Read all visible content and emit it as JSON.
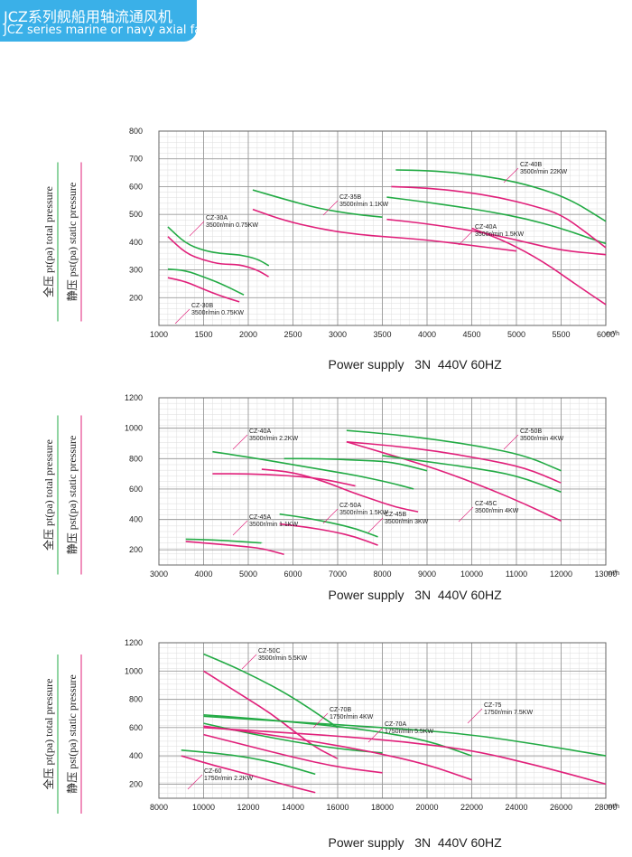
{
  "header": {
    "title_cn": "JCZ系列舰船用轴流通风机",
    "title_en": "JCZ series marine or navy axial fan",
    "band_color": "#3ab0e8"
  },
  "colors": {
    "total_pressure": "#22aa44",
    "static_pressure": "#e0207a",
    "grid": "#aaaaaa",
    "leader": "#e0207a"
  },
  "y_axis_label": {
    "total": "全压 pt(pa) total pressure",
    "static": "静压 pst(pa) static pressure"
  },
  "chart_data": [
    {
      "type": "line",
      "title": "",
      "xlabel": "Power supply   3N  440V 60HZ",
      "x_unit": "m³/h",
      "xlim": [
        1000,
        6000
      ],
      "ylim": [
        100,
        800
      ],
      "x_ticks": [
        "1000",
        "1500",
        "2000",
        "2500",
        "3000",
        "3500",
        "4000",
        "4500",
        "5000",
        "5500",
        "6000"
      ],
      "y_ticks": [
        "200",
        "300",
        "400",
        "500",
        "600",
        "700",
        "800"
      ],
      "grid": true,
      "series": [
        {
          "name": "CZ-30A",
          "kind": "total",
          "x": [
            1100,
            1300,
            1500,
            1700,
            1900,
            2100,
            2230
          ],
          "y": [
            455,
            395,
            370,
            358,
            355,
            340,
            315
          ]
        },
        {
          "name": "CZ-30A",
          "kind": "static",
          "x": [
            1100,
            1300,
            1500,
            1700,
            1900,
            2100,
            2230
          ],
          "y": [
            420,
            360,
            335,
            320,
            320,
            300,
            275
          ]
        },
        {
          "name": "CZ-30B",
          "kind": "total",
          "x": [
            1100,
            1300,
            1500,
            1700,
            1950
          ],
          "y": [
            303,
            298,
            275,
            250,
            210
          ]
        },
        {
          "name": "CZ-30B",
          "kind": "static",
          "x": [
            1100,
            1300,
            1500,
            1700,
            1900
          ],
          "y": [
            272,
            258,
            230,
            205,
            185
          ]
        },
        {
          "name": "CZ-35B",
          "kind": "total",
          "x": [
            2050,
            2400,
            2800,
            3200,
            3500
          ],
          "y": [
            588,
            555,
            520,
            500,
            490
          ]
        },
        {
          "name": "CZ-35B",
          "kind": "static",
          "x": [
            2050,
            2400,
            2800,
            3200,
            3600,
            4000,
            4500,
            5000
          ],
          "y": [
            518,
            478,
            448,
            428,
            418,
            408,
            388,
            368
          ]
        },
        {
          "name": "CZ-40A",
          "kind": "total",
          "x": [
            3550,
            3900,
            4300,
            4700,
            5100,
            5500,
            5900,
            6000
          ],
          "y": [
            562,
            548,
            530,
            510,
            485,
            450,
            405,
            395
          ]
        },
        {
          "name": "CZ-40A",
          "kind": "static",
          "x": [
            3550,
            3900,
            4300,
            4700,
            5100,
            5500,
            6000
          ],
          "y": [
            482,
            470,
            452,
            430,
            400,
            370,
            355
          ]
        },
        {
          "name": "CZ-40B",
          "kind": "total",
          "x": [
            3650,
            4000,
            4400,
            4800,
            5200,
            5600,
            6000
          ],
          "y": [
            660,
            658,
            648,
            630,
            600,
            555,
            475
          ]
        },
        {
          "name": "CZ-40B",
          "kind": "static",
          "x": [
            3600,
            4000,
            4400,
            4800,
            5200,
            5500,
            5800,
            6000
          ],
          "y": [
            600,
            595,
            582,
            562,
            530,
            500,
            430,
            380
          ]
        },
        {
          "name": "CZ-40B",
          "kind": "static",
          "x": [
            4500,
            4900,
            5300,
            5700,
            6000
          ],
          "y": [
            450,
            400,
            330,
            240,
            175
          ]
        }
      ],
      "labels": [
        {
          "name": "CZ-30A",
          "spec": "3500r/min  0.75KW"
        },
        {
          "name": "CZ-30B",
          "spec": "3500r/min  0.75KW"
        },
        {
          "name": "CZ-35B",
          "spec": "3500r/min  1.1KW"
        },
        {
          "name": "CZ-40A",
          "spec": "3500r/min  1.5KW"
        },
        {
          "name": "CZ-40B",
          "spec": "3500r/min  22KW"
        }
      ]
    },
    {
      "type": "line",
      "title": "",
      "xlabel": "Power supply   3N  440V 60HZ",
      "x_unit": "m³/h",
      "xlim": [
        3000,
        13000
      ],
      "ylim": [
        100,
        1200
      ],
      "x_ticks": [
        "3000",
        "4000",
        "5000",
        "6000",
        "7000",
        "8000",
        "9000",
        "10000",
        "11000",
        "12000",
        "13000"
      ],
      "y_ticks": [
        "200",
        "400",
        "600",
        "800",
        "1000",
        "1200"
      ],
      "grid": true,
      "series": [
        {
          "name": "CZ-45A",
          "kind": "total",
          "x": [
            3600,
            4200,
            4800,
            5300
          ],
          "y": [
            270,
            265,
            255,
            245
          ]
        },
        {
          "name": "CZ-45A",
          "kind": "static",
          "x": [
            3600,
            4200,
            4800,
            5300,
            5800
          ],
          "y": [
            255,
            240,
            225,
            210,
            170
          ]
        },
        {
          "name": "CZ-40A",
          "kind": "total",
          "x": [
            4200,
            5000,
            5800,
            6600,
            7400,
            8200,
            8700
          ],
          "y": [
            845,
            810,
            770,
            730,
            690,
            640,
            600
          ]
        },
        {
          "name": "CZ-40A",
          "kind": "static",
          "x": [
            4200,
            5000,
            5800,
            6600,
            7400
          ],
          "y": [
            700,
            700,
            690,
            670,
            620
          ]
        },
        {
          "name": "CZ-50A",
          "kind": "total",
          "x": [
            5700,
            6300,
            6900,
            7400,
            7900
          ],
          "y": [
            435,
            410,
            375,
            340,
            285
          ]
        },
        {
          "name": "CZ-50A",
          "kind": "static",
          "x": [
            5700,
            6300,
            6900,
            7400,
            7900
          ],
          "y": [
            370,
            350,
            320,
            285,
            230
          ]
        },
        {
          "name": "CZ-45B",
          "kind": "total",
          "x": [
            5800,
            6600,
            7400,
            8200,
            9000
          ],
          "y": [
            800,
            800,
            790,
            780,
            720
          ]
        },
        {
          "name": "CZ-45B",
          "kind": "static",
          "x": [
            5300,
            6000,
            6700,
            7300,
            7800,
            8300,
            8800
          ],
          "y": [
            730,
            710,
            650,
            580,
            530,
            480,
            450
          ]
        },
        {
          "name": "CZ-50B",
          "kind": "total",
          "x": [
            7200,
            8200,
            9200,
            10200,
            11200,
            12000
          ],
          "y": [
            985,
            960,
            925,
            880,
            820,
            720
          ]
        },
        {
          "name": "CZ-50B",
          "kind": "static",
          "x": [
            7200,
            8200,
            9200,
            10200,
            11200,
            12000
          ],
          "y": [
            910,
            885,
            850,
            800,
            740,
            640
          ]
        },
        {
          "name": "CZ-45C",
          "kind": "static",
          "x": [
            7200,
            8000,
            8800,
            9600,
            10400,
            11200,
            12000
          ],
          "y": [
            910,
            840,
            770,
            690,
            600,
            500,
            390
          ]
        },
        {
          "name": "CZ-45C",
          "kind": "total",
          "x": [
            8000,
            9000,
            10000,
            11000,
            12000
          ],
          "y": [
            820,
            780,
            740,
            690,
            580
          ]
        }
      ],
      "labels": [
        {
          "name": "CZ-40A",
          "spec": "3500r/min  2.2KW"
        },
        {
          "name": "CZ-45A",
          "spec": "3500r/min  1.1KW"
        },
        {
          "name": "CZ-50A",
          "spec": "3500r/min  1.5KW"
        },
        {
          "name": "CZ-45B",
          "spec": "3500r/min  3KW"
        },
        {
          "name": "CZ-50B",
          "spec": "3500r/min  4KW"
        },
        {
          "name": "CZ-45C",
          "spec": "3500r/min  4KW"
        }
      ]
    },
    {
      "type": "line",
      "title": "",
      "xlabel": "Power supply   3N  440V 60HZ",
      "x_unit": "m³/h",
      "xlim": [
        8000,
        28000
      ],
      "ylim": [
        100,
        1200
      ],
      "x_ticks": [
        "8000",
        "10000",
        "12000",
        "14000",
        "16000",
        "18000",
        "20000",
        "22000",
        "24000",
        "26000",
        "28000"
      ],
      "y_ticks": [
        "200",
        "400",
        "600",
        "800",
        "1000",
        "1200"
      ],
      "grid": true,
      "series": [
        {
          "name": "CZ-50C",
          "kind": "total",
          "x": [
            10000,
            11200,
            12400,
            13600,
            14800,
            16000
          ],
          "y": [
            1120,
            1040,
            950,
            850,
            730,
            600
          ]
        },
        {
          "name": "CZ-50C",
          "kind": "static",
          "x": [
            10000,
            11000,
            12000,
            13000,
            14000,
            15000,
            16000
          ],
          "y": [
            1000,
            900,
            800,
            700,
            580,
            460,
            380
          ]
        },
        {
          "name": "CZ-60",
          "kind": "total",
          "x": [
            9000,
            10500,
            12000,
            13500,
            15000
          ],
          "y": [
            440,
            420,
            390,
            340,
            270
          ]
        },
        {
          "name": "CZ-60",
          "kind": "static",
          "x": [
            9000,
            10500,
            12000,
            13500,
            15000
          ],
          "y": [
            400,
            330,
            270,
            200,
            140
          ]
        },
        {
          "name": "CZ-70B",
          "kind": "total",
          "x": [
            10000,
            12000,
            14000,
            16000,
            18000
          ],
          "y": [
            630,
            560,
            500,
            450,
            420
          ]
        },
        {
          "name": "CZ-70B",
          "kind": "static",
          "x": [
            10000,
            12000,
            14000,
            16000,
            18000
          ],
          "y": [
            550,
            470,
            390,
            320,
            280
          ]
        },
        {
          "name": "CZ-70A",
          "kind": "total",
          "x": [
            10000,
            12500,
            15000,
            17500,
            20000,
            22000
          ],
          "y": [
            690,
            660,
            625,
            580,
            510,
            400
          ]
        },
        {
          "name": "CZ-70A",
          "kind": "static",
          "x": [
            10000,
            12500,
            15000,
            17500,
            20000,
            22000
          ],
          "y": [
            610,
            560,
            500,
            430,
            340,
            230
          ]
        },
        {
          "name": "CZ-75",
          "kind": "total",
          "x": [
            10000,
            13000,
            16000,
            19000,
            22000,
            25000,
            28000
          ],
          "y": [
            680,
            650,
            620,
            590,
            550,
            480,
            400
          ]
        },
        {
          "name": "CZ-75",
          "kind": "static",
          "x": [
            10000,
            13000,
            16000,
            19000,
            22000,
            25000,
            28000
          ],
          "y": [
            600,
            570,
            540,
            500,
            440,
            330,
            200
          ]
        }
      ],
      "labels": [
        {
          "name": "CZ-50C",
          "spec": "3500r/min  5.5KW"
        },
        {
          "name": "CZ-70B",
          "spec": "1750r/min  4KW"
        },
        {
          "name": "CZ-70A",
          "spec": "1750r/min  5.5KW"
        },
        {
          "name": "CZ-75",
          "spec": "1750r/min  7.5KW"
        },
        {
          "name": "CZ-60",
          "spec": "1750r/min  2.2KW"
        }
      ]
    }
  ]
}
